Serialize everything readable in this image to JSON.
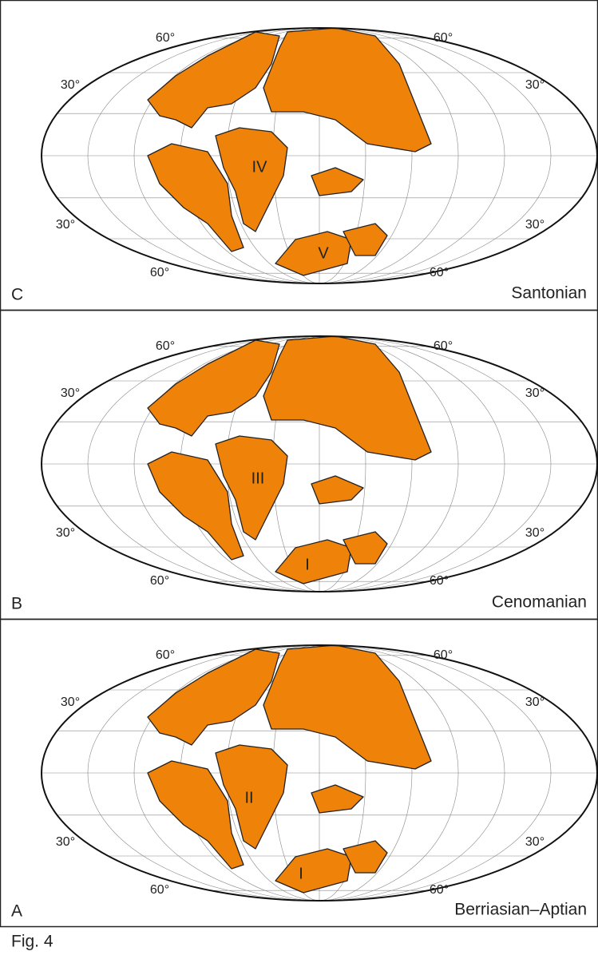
{
  "panels": [
    {
      "letter": "C",
      "stage": "Santonian",
      "graticule_labels": [
        "60°",
        "60°",
        "30°",
        "30°",
        "30°",
        "30°",
        "60°",
        "60°"
      ],
      "continent_labels": [
        "IV",
        "V"
      ]
    },
    {
      "letter": "B",
      "stage": "Cenomanian",
      "graticule_labels": [
        "60°",
        "60°",
        "30°",
        "30°",
        "30°",
        "30°",
        "60°",
        "60°"
      ],
      "continent_labels": [
        "III",
        "I"
      ]
    },
    {
      "letter": "A",
      "stage": "Berriasian–Aptian",
      "graticule_labels": [
        "60°",
        "60°",
        "30°",
        "30°",
        "30°",
        "30°",
        "60°",
        "60°"
      ],
      "continent_labels": [
        "II",
        "I"
      ]
    }
  ],
  "caption": "Fig. 4"
}
